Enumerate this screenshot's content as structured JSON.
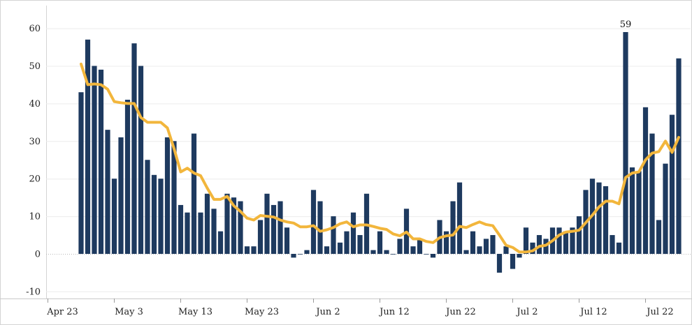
{
  "chart_data": {
    "type": "bar",
    "title": "",
    "xlabel": "",
    "ylabel": "",
    "ylim": [
      -12,
      65
    ],
    "y_ticks": [
      -10,
      0,
      10,
      20,
      30,
      40,
      50,
      60
    ],
    "x_tick_labels": [
      "Apr 23",
      "May 3",
      "May 13",
      "May 23",
      "Jun 2",
      "Jun 12",
      "Jun 22",
      "Jul 2",
      "Jul 12",
      "Jul 22"
    ],
    "x_tick_offsets_days": [
      0,
      10,
      20,
      30,
      40,
      50,
      60,
      70,
      80,
      90
    ],
    "first_bar_date": "Apr 28",
    "grid": "horizontal",
    "series": [
      {
        "kind": "bar",
        "color": "#1e3a5f",
        "values": [
          43,
          57,
          50,
          49,
          33,
          20,
          31,
          41,
          56,
          50,
          25,
          21,
          20,
          31,
          30,
          13,
          11,
          32,
          11,
          16,
          12,
          6,
          16,
          15,
          14,
          2,
          2,
          9,
          16,
          13,
          14,
          7,
          -1,
          0,
          1,
          17,
          14,
          2,
          10,
          3,
          6,
          11,
          5,
          16,
          1,
          6,
          1,
          0,
          4,
          12,
          2,
          4,
          0,
          -1,
          9,
          6,
          14,
          19,
          1,
          6,
          2,
          4,
          5,
          -5,
          2,
          -4,
          -1,
          7,
          3,
          5,
          4,
          7,
          7,
          6,
          7,
          10,
          17,
          20,
          19,
          18,
          5,
          3,
          59,
          23,
          22,
          39,
          32,
          9,
          24,
          37,
          52
        ]
      },
      {
        "kind": "line",
        "color": "#f2b63c",
        "values": [
          50.5,
          45.0,
          45.2,
          45.0,
          43.8,
          40.5,
          40.2,
          40.0,
          40.0,
          36.3,
          35.0,
          35.0,
          35.0,
          33.5,
          28.0,
          21.8,
          22.8,
          21.5,
          20.8,
          17.5,
          14.5,
          14.5,
          15.3,
          12.8,
          11.3,
          9.5,
          9.0,
          10.2,
          10.0,
          9.8,
          9.0,
          8.5,
          8.2,
          7.2,
          7.2,
          7.5,
          6.0,
          6.4,
          7.0,
          8.0,
          8.5,
          7.2,
          7.7,
          7.7,
          7.3,
          6.8,
          6.5,
          5.3,
          4.8,
          5.8,
          4.0,
          4.0,
          3.3,
          3.0,
          4.3,
          4.8,
          5.0,
          7.3,
          7.0,
          7.8,
          8.5,
          7.8,
          7.5,
          5.0,
          2.3,
          1.7,
          0.5,
          0.5,
          0.8,
          2.0,
          2.3,
          3.5,
          5.0,
          5.8,
          6.0,
          6.3,
          8.3,
          10.3,
          12.5,
          14.0,
          14.0,
          13.3,
          20.3,
          21.5,
          21.8,
          25.0,
          26.8,
          27.2,
          30.0,
          27.0,
          31.0
        ]
      }
    ],
    "data_labels": [
      {
        "index": 82,
        "text": "59"
      }
    ]
  }
}
